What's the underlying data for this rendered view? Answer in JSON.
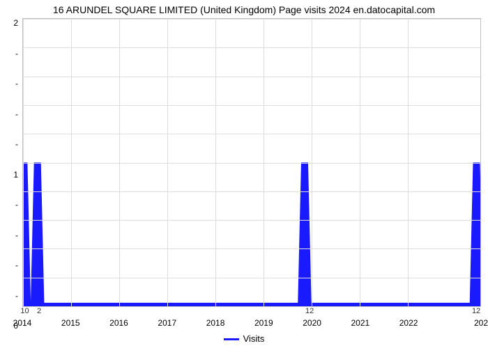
{
  "chart": {
    "type": "line",
    "title": "16 ARUNDEL SQUARE LIMITED (United Kingdom) Page visits 2024 en.datocapital.com",
    "title_fontsize": 14,
    "title_color": "#000000",
    "background_color": "#ffffff",
    "grid_color": "#dddddd",
    "border_color": "#c0c0c0",
    "line_color": "#1a1aff",
    "line_width": 2.5,
    "xlim": [
      2014,
      2023.5
    ],
    "ylim": [
      0,
      2
    ],
    "ytick_values": [
      0,
      1,
      2
    ],
    "y_minor_ticks": 4,
    "xtick_values": [
      2014,
      2015,
      2016,
      2017,
      2018,
      2019,
      2020,
      2021,
      2022,
      2023.5
    ],
    "xtick_labels": [
      "2014",
      "2015",
      "2016",
      "2017",
      "2018",
      "2019",
      "2020",
      "2021",
      "2022",
      "202"
    ],
    "legend_label": "Visits",
    "legend_fontsize": 13,
    "axis_fontsize": 12,
    "count_labels": [
      {
        "x": 2014.05,
        "text": "10"
      },
      {
        "x": 2014.35,
        "text": "2"
      },
      {
        "x": 2019.95,
        "text": "12"
      },
      {
        "x": 2023.4,
        "text": "12"
      }
    ],
    "spikes": [
      {
        "x": 2014.02,
        "value": 1
      },
      {
        "x": 2014.3,
        "value": 1
      },
      {
        "x": 2019.85,
        "value": 1
      },
      {
        "x": 2023.42,
        "value": 1
      }
    ],
    "spike_half_width": 0.07
  }
}
